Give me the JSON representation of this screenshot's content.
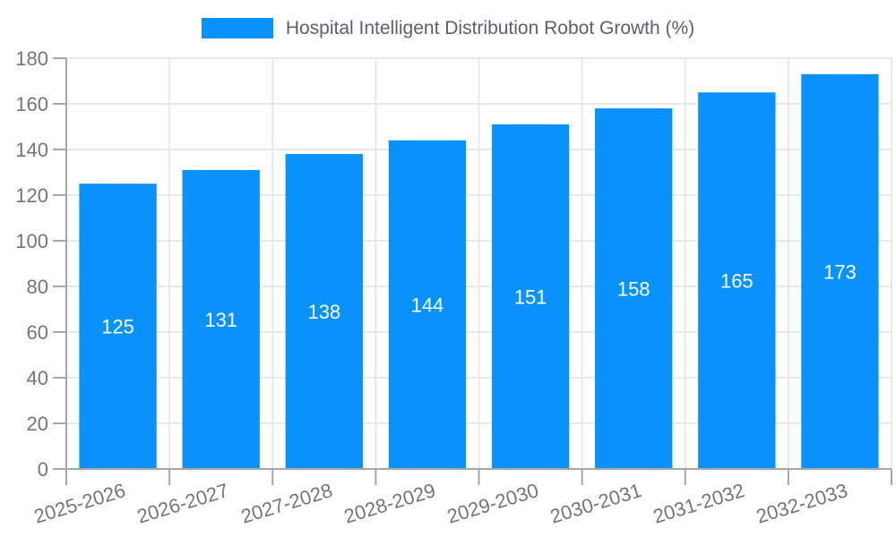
{
  "legend": {
    "label": "Hospital Intelligent Distribution Robot Growth (%)"
  },
  "chart_data": {
    "type": "bar",
    "title": "Hospital Intelligent Distribution Robot Growth (%)",
    "categories": [
      "2025-2026",
      "2026-2027",
      "2027-2028",
      "2028-2029",
      "2029-2030",
      "2030-2031",
      "2031-2032",
      "2032-2033"
    ],
    "values": [
      125,
      131,
      138,
      144,
      151,
      158,
      165,
      173
    ],
    "xlabel": "",
    "ylabel": "",
    "ylim": [
      0,
      180
    ],
    "ytick_step": 20,
    "yticks": [
      0,
      20,
      40,
      60,
      80,
      100,
      120,
      140,
      160,
      180
    ],
    "grid": true,
    "legend_position": "top-center",
    "bar_color": "#0992fb",
    "value_label_color": "#ffffff",
    "axis_label_color": "#757575",
    "grid_color": "#e8e8e8",
    "axis_line_color": "#a6a6a6",
    "background_color": "#ffffff"
  }
}
